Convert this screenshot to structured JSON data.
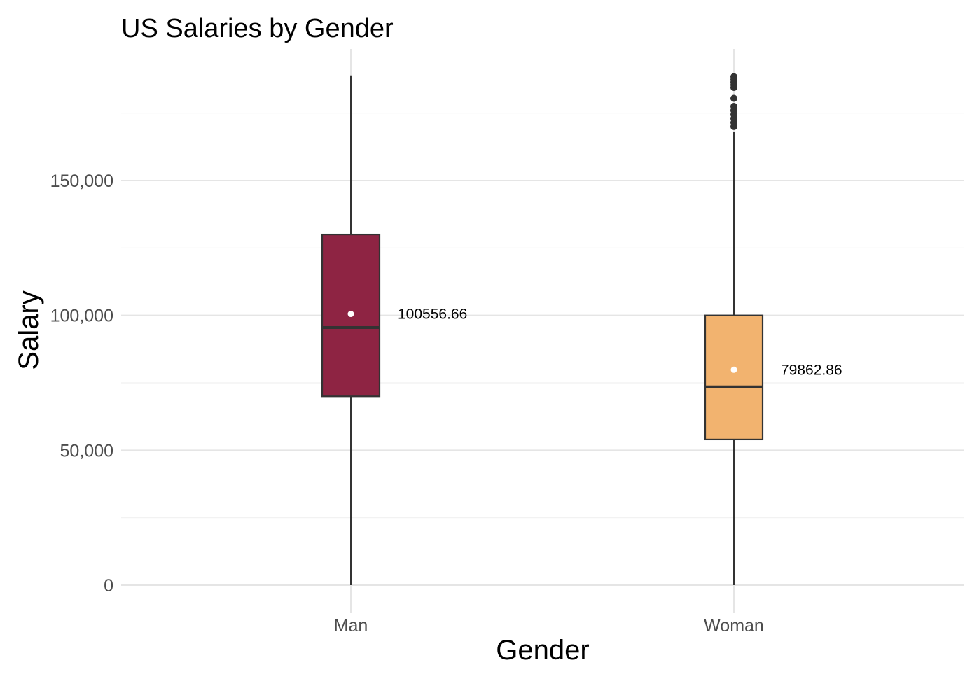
{
  "chart_data": {
    "type": "box",
    "title": "US Salaries by Gender",
    "xlabel": "Gender",
    "ylabel": "Salary",
    "ylim": [
      0,
      187000
    ],
    "yticks": [
      0,
      50000,
      100000,
      150000
    ],
    "ytick_labels": [
      "0",
      "50,000",
      "100,000",
      "150,000"
    ],
    "grid": true,
    "legend": "none",
    "categories": [
      "Man",
      "Woman"
    ],
    "boxes": [
      {
        "category": "Man",
        "fill": "#8E2443",
        "whisker_low": 0,
        "q1": 70000,
        "median": 95500,
        "q3": 130000,
        "whisker_high": 189000,
        "mean": 100556.66,
        "mean_label": "100556.66",
        "outliers": []
      },
      {
        "category": "Woman",
        "fill": "#F2B36F",
        "whisker_low": 0,
        "q1": 54000,
        "median": 73500,
        "q3": 100000,
        "whisker_high": 168000,
        "mean": 79862.86,
        "mean_label": "79862.86",
        "outliers": [
          170000,
          171500,
          173000,
          174500,
          176000,
          177500,
          180500,
          184500,
          185500,
          186500,
          187500,
          188500
        ]
      }
    ]
  }
}
